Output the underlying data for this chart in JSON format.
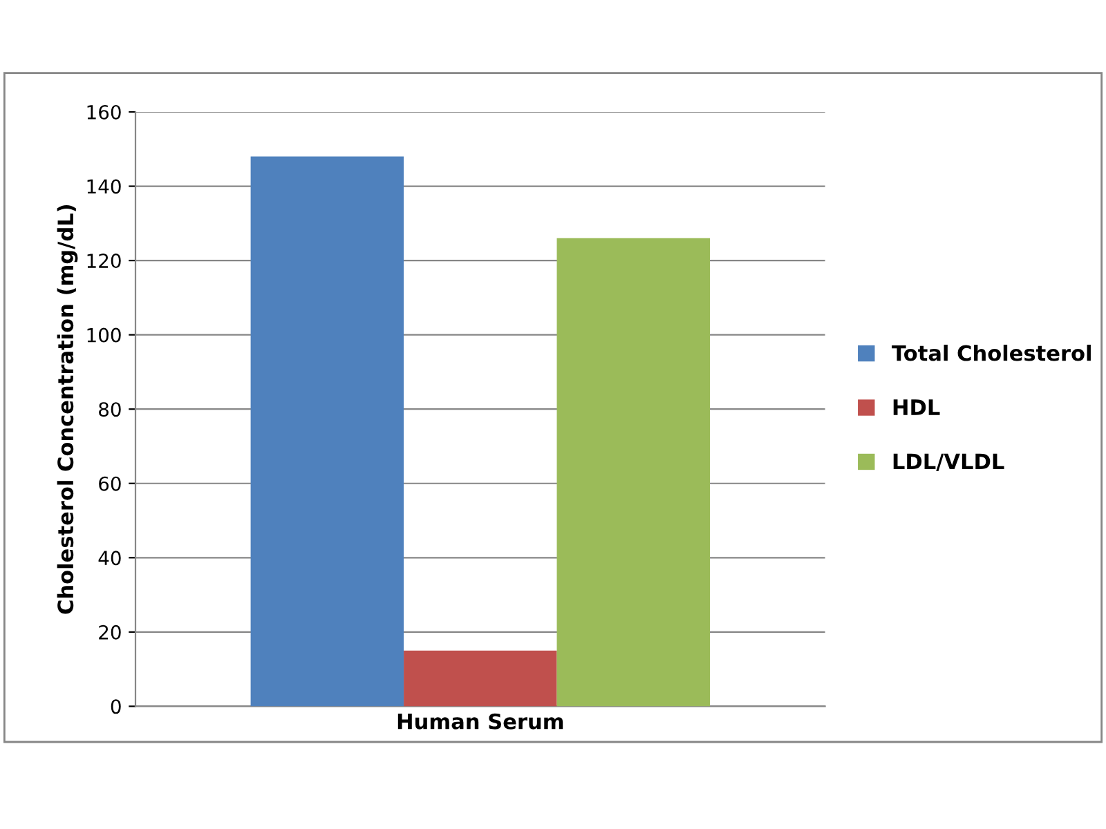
{
  "chart_data": {
    "type": "bar",
    "categories": [
      "Human Serum"
    ],
    "ylabel": "Cholesterol Concentration (mg/dL)",
    "series": [
      {
        "name": "Total Cholesterol",
        "color": "#4f81bd",
        "values": [
          148
        ]
      },
      {
        "name": "HDL",
        "color": "#c0504d",
        "values": [
          15
        ]
      },
      {
        "name": "LDL/VLDL",
        "color": "#9bbb59",
        "values": [
          126
        ]
      }
    ],
    "ylim": [
      0,
      160
    ],
    "yticks": [
      0,
      20,
      40,
      60,
      80,
      100,
      120,
      140,
      160
    ],
    "grid": "y",
    "legend": "right"
  }
}
